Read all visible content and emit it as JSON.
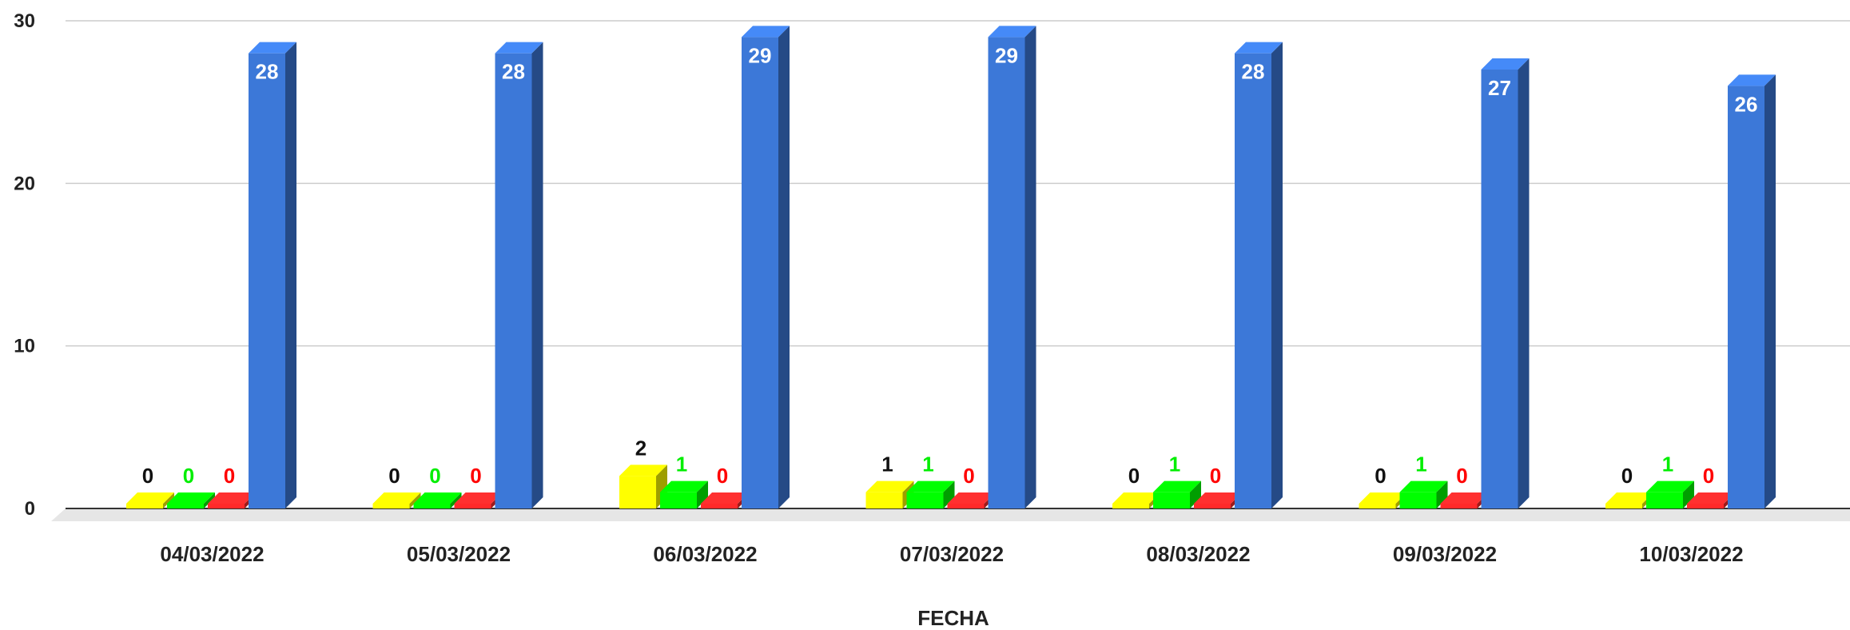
{
  "chart_data": {
    "type": "bar",
    "title": "",
    "xlabel": "FECHA",
    "ylabel": "",
    "ylim": [
      0,
      30
    ],
    "yticks": [
      0,
      10,
      20,
      30
    ],
    "grid": true,
    "legend": "none",
    "categories": [
      "04/03/2022",
      "05/03/2022",
      "06/03/2022",
      "07/03/2022",
      "08/03/2022",
      "09/03/2022",
      "10/03/2022"
    ],
    "series": [
      {
        "values": [
          0,
          0,
          2,
          1,
          0,
          0,
          0
        ],
        "color": "#ffff00",
        "label_color": "#111111"
      },
      {
        "values": [
          0,
          0,
          1,
          1,
          1,
          1,
          1
        ],
        "color": "#00ff00",
        "label_color": "#00ee00"
      },
      {
        "values": [
          0,
          0,
          0,
          0,
          0,
          0,
          0
        ],
        "color": "#ff2a2a",
        "label_color": "#ff0000"
      },
      {
        "values": [
          28,
          28,
          29,
          29,
          28,
          27,
          26
        ],
        "color": "#3c78d8",
        "label_color": "#ffffff"
      }
    ]
  }
}
